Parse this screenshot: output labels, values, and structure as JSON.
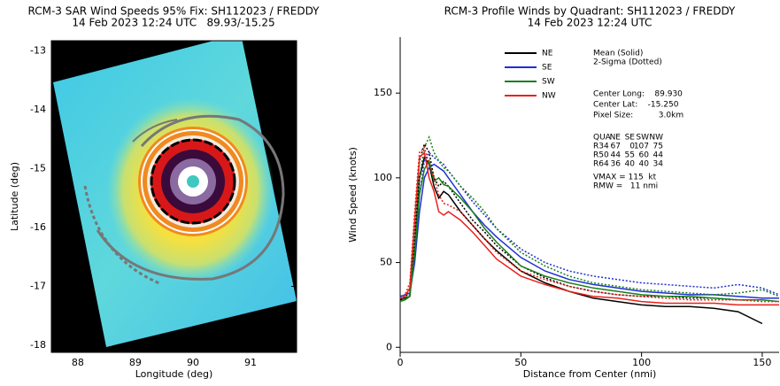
{
  "chart_data": [
    {
      "type": "image",
      "title": "RCM-3 SAR Wind Speeds 95% Fix: SH112023 / FREDDY",
      "subtitle": "14 Feb 2023 12:24 UTC   89.93/-15.25",
      "x_label": "Longitude (deg)",
      "y_label": "Latitude (deg)",
      "xlim": [
        87.54,
        91.8
      ],
      "xticks": [
        88,
        89,
        90,
        91
      ],
      "ylim": [
        -18.12,
        -12.83
      ],
      "yticks": [
        -13,
        -14,
        -15,
        -16,
        -17,
        -18
      ]
    },
    {
      "type": "line",
      "title": "RCM-3 Profile Winds by Quadrant: SH112023 / FREDDY",
      "subtitle": "14 Feb 2023 12:24 UTC",
      "x_label": "Distance from Center (nmi)",
      "y_label": "Wind Speed (knots)",
      "xlim": [
        0,
        157
      ],
      "xticks": [
        0,
        50,
        100,
        150
      ],
      "ylim": [
        -3,
        183
      ],
      "yticks": [
        0,
        50,
        100,
        150
      ],
      "x": [
        0,
        2,
        4,
        6,
        8,
        10,
        12,
        14,
        16,
        18,
        20,
        25,
        30,
        35,
        40,
        50,
        60,
        70,
        80,
        90,
        100,
        110,
        120,
        130,
        140,
        150,
        157
      ],
      "series": [
        {
          "name": "NE",
          "color": "#000000",
          "values": [
            28,
            29,
            30,
            60,
            100,
            112,
            108,
            95,
            88,
            92,
            90,
            80,
            72,
            64,
            57,
            45,
            38,
            33,
            29,
            27,
            25,
            24,
            24,
            23,
            21,
            14,
            null
          ],
          "sigma_values": [
            28,
            30,
            32,
            70,
            110,
            120,
            115,
            100,
            95,
            98,
            95,
            85,
            75,
            68,
            60,
            48,
            41,
            36,
            33,
            31,
            30,
            30,
            29,
            29,
            28,
            28,
            null
          ]
        },
        {
          "name": "SE",
          "color": "#1f2fd6",
          "values": [
            30,
            31,
            32,
            50,
            80,
            100,
            106,
            108,
            106,
            104,
            100,
            90,
            80,
            72,
            65,
            53,
            45,
            40,
            37,
            35,
            33,
            32,
            31,
            31,
            30,
            29,
            29
          ],
          "sigma_values": [
            30,
            31,
            33,
            55,
            90,
            110,
            115,
            112,
            110,
            108,
            104,
            95,
            86,
            78,
            70,
            58,
            50,
            45,
            42,
            40,
            38,
            37,
            36,
            35,
            37,
            35,
            31
          ]
        },
        {
          "name": "SW",
          "color": "#1a7f1a",
          "values": [
            27,
            28,
            30,
            55,
            90,
            105,
            110,
            98,
            100,
            96,
            95,
            88,
            80,
            70,
            62,
            48,
            42,
            38,
            35,
            33,
            31,
            30,
            30,
            29,
            28,
            28,
            27
          ],
          "sigma_values": [
            27,
            29,
            31,
            60,
            100,
            118,
            124,
            115,
            110,
            106,
            104,
            95,
            88,
            80,
            70,
            56,
            48,
            42,
            38,
            36,
            34,
            33,
            32,
            31,
            32,
            34,
            30
          ]
        },
        {
          "name": "NW",
          "color": "#e8231c",
          "values": [
            29,
            30,
            35,
            75,
            112,
            115,
            100,
            92,
            80,
            78,
            80,
            75,
            68,
            60,
            52,
            42,
            37,
            33,
            30,
            29,
            27,
            26,
            26,
            26,
            25,
            25,
            25
          ],
          "sigma_values": [
            29,
            31,
            38,
            80,
            115,
            118,
            108,
            100,
            90,
            85,
            84,
            80,
            72,
            64,
            56,
            45,
            40,
            36,
            33,
            31,
            30,
            29,
            28,
            28,
            28,
            27,
            27
          ]
        }
      ],
      "annotations": {
        "line_style_note": [
          "Mean (Solid)",
          "2-Sigma (Dotted)"
        ],
        "center_info": [
          "Center Long:    89.930",
          "Center Lat:    -15.250",
          "Pixel Size:          3.0km"
        ],
        "radii_table": [
          [
            "QUA",
            "NE",
            "SE",
            "SW",
            "NW"
          ],
          [
            "R34",
            67,
            0,
            107,
            75
          ],
          [
            "R50",
            44,
            55,
            60,
            44
          ],
          [
            "R64",
            36,
            40,
            40,
            34
          ]
        ],
        "intensity": [
          "VMAX = 115  kt",
          "RMW =   11 nmi"
        ]
      }
    }
  ]
}
